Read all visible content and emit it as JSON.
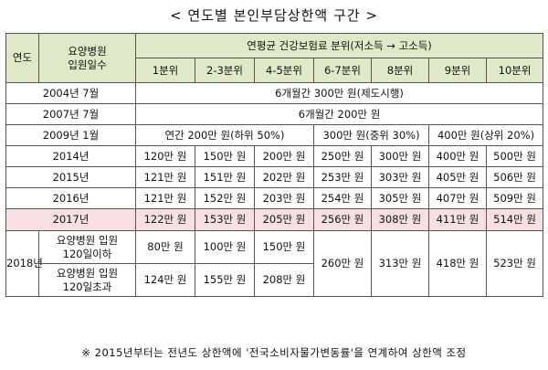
{
  "title": "< 연도별 본인부담상한액 구간 >",
  "header": {
    "year": "연도",
    "days_line1": "요양병원",
    "days_line2": "입원일수",
    "income_group": "연평균 건강보험료 분위(저소득 → 고소득)",
    "deciles": [
      "1분위",
      "2-3분위",
      "4-5분위",
      "6-7분위",
      "8분위",
      "9분위",
      "10분위"
    ]
  },
  "rows_early": [
    {
      "year": "2004년 7월",
      "value": "6개월간 300만 원(제도시행)"
    },
    {
      "year": "2007년 7월",
      "value": "6개월간 200만 원"
    }
  ],
  "row_2009": {
    "year": "2009년 1월",
    "low": "연간 200만 원(하위 50%)",
    "mid": "300만 원(중위 30%)",
    "high": "400만 원(상위 20%)"
  },
  "rows_decile": [
    {
      "year": "2014년",
      "values": [
        "120만 원",
        "150만 원",
        "200만 원",
        "250만 원",
        "300만 원",
        "400만 원",
        "500만 원"
      ]
    },
    {
      "year": "2015년",
      "values": [
        "121만 원",
        "151만 원",
        "202만 원",
        "253만 원",
        "303만 원",
        "405만 원",
        "506만 원"
      ]
    },
    {
      "year": "2016년",
      "values": [
        "121만 원",
        "152만 원",
        "203만 원",
        "254만 원",
        "305만 원",
        "407만 원",
        "509만 원"
      ]
    },
    {
      "year": "2017년",
      "values": [
        "122만 원",
        "153만 원",
        "205만 원",
        "256만 원",
        "308만 원",
        "411만 원",
        "514만 원"
      ]
    }
  ],
  "row_2018": {
    "year": "2018년",
    "sub1_label_line1": "요양병원 입원",
    "sub1_label_line2": "120일이하",
    "sub1_values": [
      "80만 원",
      "100만 원",
      "150만 원"
    ],
    "sub2_label_line1": "요양병원 입원",
    "sub2_label_line2": "120일초과",
    "sub2_values": [
      "124만 원",
      "155만 원",
      "208만 원"
    ],
    "shared_values": [
      "260만 원",
      "313만 원",
      "418만 원",
      "523만 원"
    ]
  },
  "note": "※ 2015년부터는 전년도 상한액에 '전국소비자물가변동률'을 연계하여 상한액 조정",
  "colors": {
    "header_bg": "#dfe9c8",
    "highlight_row_bg": "#f7dfe2"
  }
}
